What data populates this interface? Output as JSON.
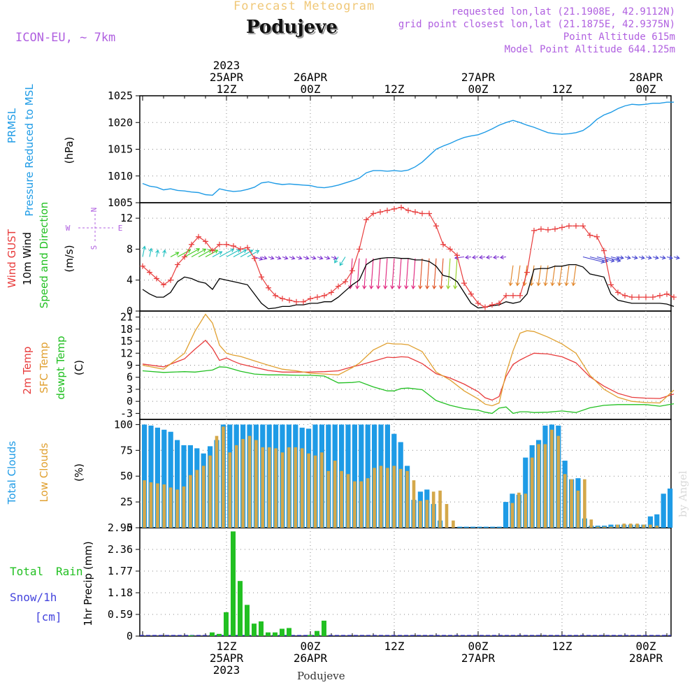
{
  "header": {
    "product": "Forecast Meteogram",
    "location": "Podujeve",
    "model": "ICON-EU, ~ 7km",
    "requested": "requested lon,lat (21.1908E, 42.9112N)",
    "gridpoint": "grid point closest lon,lat (21.1875E, 42.9375N)",
    "point_alt": "Point Altitude 615m",
    "model_alt": "Model Point Altitude 644.125m",
    "footer": "Podujeve",
    "watermark": "by Angel"
  },
  "time_axis": {
    "top_labels": [
      {
        "h": 12,
        "lines": [
          "2023",
          "25APR",
          "12Z"
        ]
      },
      {
        "h": 24,
        "lines": [
          "26APR",
          "00Z"
        ]
      },
      {
        "h": 36,
        "lines": [
          "12Z"
        ]
      },
      {
        "h": 48,
        "lines": [
          "27APR",
          "00Z"
        ]
      },
      {
        "h": 60,
        "lines": [
          "12Z"
        ]
      },
      {
        "h": 72,
        "lines": [
          "28APR",
          "00Z"
        ]
      }
    ],
    "bottom_labels": [
      {
        "h": 12,
        "lines": [
          "12Z",
          "25APR",
          "2023"
        ]
      },
      {
        "h": 24,
        "lines": [
          "00Z",
          "26APR"
        ]
      },
      {
        "h": 36,
        "lines": [
          "12Z"
        ]
      },
      {
        "h": 48,
        "lines": [
          "00Z",
          "27APR"
        ]
      },
      {
        "h": 60,
        "lines": [
          "12Z"
        ]
      },
      {
        "h": 72,
        "lines": [
          "00Z",
          "28APR"
        ]
      }
    ]
  },
  "panel_labels": {
    "pressure": {
      "l1": "PRMSL",
      "l2": "Pressure Reduced to MSL",
      "unit": "(hPa)"
    },
    "wind": {
      "l1": "Wind GUST",
      "l2": "10m Wind",
      "l3": "Speed and Direction",
      "unit": "(m/s)",
      "compass": [
        "N",
        "W",
        "E",
        "S"
      ]
    },
    "temp": {
      "l1": "2m Temp",
      "l2": "SFC Temp",
      "l3": "dewpt Temp",
      "unit": "(C)"
    },
    "clouds": {
      "l1": "Total Clouds",
      "l2": "Low Clouds",
      "unit": "(%)"
    },
    "precip": {
      "l1": "Total",
      "l1b": "Rain",
      "l2": "Snow/1h",
      "l3": "[cm]",
      "unit": "1hr Precip (mm)"
    }
  },
  "colors": {
    "pressure": "#1e9be6",
    "gust": "#e83c3c",
    "wind": "#000000",
    "t2m": "#e83c3c",
    "sfc": "#e0a030",
    "dewpt": "#22c022",
    "total_cloud": "#1e9be6",
    "low_cloud": "#d4a84a",
    "rain": "#22c022",
    "snow": "#4444dd",
    "label_purple": "#b060e0",
    "label_cyan": "#1e9be6"
  },
  "chart_data": [
    {
      "type": "line",
      "name": "pressure",
      "ylim": [
        1005,
        1025
      ],
      "yticks": [
        1005,
        1010,
        1015,
        1020,
        1025
      ],
      "x_hours": [
        0,
        1,
        2,
        3,
        4,
        5,
        6,
        7,
        8,
        9,
        10,
        11,
        12,
        13,
        14,
        15,
        16,
        17,
        18,
        19,
        20,
        21,
        22,
        23,
        24,
        25,
        26,
        27,
        28,
        29,
        30,
        31,
        32,
        33,
        34,
        35,
        36,
        37,
        38,
        39,
        40,
        41,
        42,
        43,
        44,
        45,
        46,
        47,
        48,
        49,
        50,
        51,
        52,
        53,
        54,
        55,
        56,
        57,
        58,
        59,
        60,
        61,
        62,
        63,
        64,
        65,
        66,
        67,
        68,
        69,
        70,
        71,
        72,
        73,
        74,
        75,
        76
      ],
      "series": [
        {
          "values": [
            1008.6,
            1008.1,
            1007.9,
            1007.4,
            1007.6,
            1007.3,
            1007.2,
            1007.0,
            1006.9,
            1006.5,
            1006.4,
            1007.6,
            1007.3,
            1007.1,
            1007.2,
            1007.5,
            1007.9,
            1008.7,
            1008.9,
            1008.6,
            1008.4,
            1008.5,
            1008.4,
            1008.3,
            1008.2,
            1007.9,
            1007.8,
            1008.0,
            1008.3,
            1008.7,
            1009.1,
            1009.6,
            1010.6,
            1011.0,
            1011.0,
            1010.9,
            1011.0,
            1010.9,
            1011.1,
            1011.7,
            1012.6,
            1013.8,
            1015.0,
            1015.6,
            1016.1,
            1016.7,
            1017.2,
            1017.5,
            1017.7,
            1018.2,
            1018.8,
            1019.5,
            1020.0,
            1020.4,
            1020.0,
            1019.5,
            1019.1,
            1018.6,
            1018.1,
            1017.9,
            1017.8,
            1017.9,
            1018.1,
            1018.5,
            1019.4,
            1020.6,
            1021.4,
            1021.9,
            1022.6,
            1023.1,
            1023.4,
            1023.3,
            1023.4,
            1023.6,
            1023.6,
            1023.8,
            1023.8
          ]
        }
      ]
    },
    {
      "type": "line",
      "name": "wind",
      "ylim": [
        0,
        14
      ],
      "yticks": [
        0,
        4,
        8,
        12
      ],
      "x_hours": [
        0,
        1,
        2,
        3,
        4,
        5,
        6,
        7,
        8,
        9,
        10,
        11,
        12,
        13,
        14,
        15,
        16,
        17,
        18,
        19,
        20,
        21,
        22,
        23,
        24,
        25,
        26,
        27,
        28,
        29,
        30,
        31,
        32,
        33,
        34,
        35,
        36,
        37,
        38,
        39,
        40,
        41,
        42,
        43,
        44,
        45,
        46,
        47,
        48,
        49,
        50,
        51,
        52,
        53,
        54,
        55,
        56,
        57,
        58,
        59,
        60,
        61,
        62,
        63,
        64,
        65,
        66,
        67,
        68,
        69,
        70,
        71,
        72,
        73,
        74,
        75,
        76
      ],
      "series": [
        {
          "name": "Wind GUST",
          "values": [
            5.8,
            5.0,
            4.2,
            3.4,
            4.0,
            6.0,
            7.0,
            8.6,
            9.6,
            9.0,
            7.8,
            8.6,
            8.6,
            8.4,
            8.0,
            8.2,
            6.8,
            4.4,
            3.0,
            2.0,
            1.6,
            1.4,
            1.2,
            1.2,
            1.6,
            1.8,
            2.0,
            2.4,
            3.2,
            3.8,
            5.2,
            8.0,
            11.8,
            12.6,
            12.8,
            13.0,
            13.2,
            13.4,
            13.0,
            12.8,
            12.6,
            12.6,
            11.0,
            8.6,
            8.0,
            7.2,
            3.6,
            2.2,
            1.0,
            0.5,
            0.8,
            1.0,
            2.0,
            2.0,
            2.0,
            5.0,
            10.4,
            10.6,
            10.5,
            10.6,
            10.8,
            11.0,
            11.0,
            11.0,
            9.8,
            9.6,
            7.8,
            3.4,
            2.4,
            2.0,
            1.8,
            1.8,
            1.8,
            1.8,
            2.0,
            2.2,
            1.8
          ]
        },
        {
          "name": "10m Wind",
          "values": [
            2.8,
            2.2,
            1.8,
            1.8,
            2.4,
            3.8,
            4.4,
            4.2,
            3.8,
            3.6,
            2.8,
            4.2,
            4.0,
            3.8,
            3.6,
            3.4,
            2.2,
            1.0,
            0.3,
            0.4,
            0.6,
            0.6,
            0.8,
            0.8,
            1.0,
            1.0,
            1.2,
            1.2,
            1.8,
            2.6,
            3.4,
            4.0,
            6.0,
            6.6,
            6.8,
            6.9,
            6.9,
            6.8,
            6.8,
            6.6,
            6.6,
            6.4,
            5.8,
            4.6,
            4.4,
            3.8,
            2.4,
            1.0,
            0.4,
            0.5,
            0.7,
            0.8,
            1.2,
            1.0,
            1.2,
            2.2,
            5.4,
            5.5,
            5.5,
            5.8,
            5.8,
            6.0,
            6.0,
            5.7,
            4.8,
            4.6,
            4.4,
            2.2,
            1.4,
            1.2,
            1.0,
            1.0,
            1.0,
            1.0,
            1.0,
            0.9,
            0.6
          ]
        }
      ]
    },
    {
      "type": "line",
      "name": "temperature",
      "ylim": [
        -4.5,
        22.5
      ],
      "yticks": [
        -3,
        0,
        3,
        6,
        9,
        12,
        15,
        18,
        21
      ],
      "x_hours": [
        0,
        3,
        6,
        7.5,
        9,
        10,
        11,
        12,
        13,
        14,
        16,
        18,
        20,
        22,
        24,
        26,
        28,
        30,
        31,
        33,
        35,
        36,
        37,
        38,
        40,
        42,
        44,
        46,
        48,
        49,
        50,
        51,
        52,
        53,
        54,
        55,
        56,
        58,
        60,
        62,
        64,
        66,
        68,
        70,
        72,
        74,
        76
      ],
      "series": [
        {
          "name": "2m Temp",
          "values": [
            9.3,
            8.6,
            10.6,
            13.0,
            15.2,
            13.2,
            10.2,
            10.8,
            10.0,
            9.3,
            8.5,
            7.7,
            7.3,
            7.3,
            7.3,
            7.4,
            7.6,
            8.6,
            9.0,
            10.0,
            11.0,
            10.9,
            11.1,
            11.0,
            9.4,
            6.9,
            5.8,
            4.3,
            2.4,
            0.9,
            0.3,
            1.2,
            6.2,
            9.2,
            10.3,
            11.2,
            12.0,
            11.8,
            11.1,
            9.6,
            6.1,
            3.8,
            2.0,
            1.0,
            0.8,
            0.7,
            1.8
          ]
        },
        {
          "name": "SFC Temp",
          "values": [
            9.0,
            8.0,
            12.0,
            17.5,
            21.7,
            19.5,
            14.0,
            12.0,
            11.5,
            11.2,
            10.1,
            9.0,
            8.0,
            7.6,
            7.0,
            6.8,
            6.6,
            8.4,
            9.5,
            12.8,
            14.5,
            14.3,
            14.3,
            14.1,
            12.4,
            7.3,
            5.3,
            2.6,
            0.6,
            -0.7,
            -1.1,
            -0.4,
            7.0,
            12.6,
            17.0,
            17.6,
            17.4,
            16.0,
            14.3,
            12.0,
            6.5,
            3.0,
            1.0,
            0.0,
            -0.3,
            -0.4,
            2.8
          ]
        },
        {
          "name": "dewpt Temp",
          "values": [
            7.6,
            7.2,
            7.4,
            7.3,
            7.6,
            7.8,
            8.6,
            8.5,
            8.0,
            7.5,
            6.8,
            6.6,
            6.6,
            6.5,
            6.5,
            6.3,
            4.6,
            4.7,
            4.9,
            3.6,
            2.6,
            2.6,
            3.2,
            3.3,
            2.9,
            0.2,
            -1.0,
            -1.8,
            -2.2,
            -2.7,
            -3.0,
            -1.7,
            -1.4,
            -3.0,
            -2.6,
            -2.6,
            -2.8,
            -2.7,
            -2.4,
            -2.8,
            -1.6,
            -1.0,
            -0.8,
            -0.8,
            -0.8,
            -1.2,
            -0.6
          ]
        }
      ]
    },
    {
      "type": "bar",
      "name": "clouds",
      "ylim": [
        0,
        105
      ],
      "yticks": [
        0,
        25,
        50,
        75,
        100
      ],
      "series": [
        {
          "name": "Total Clouds",
          "values": [
            100,
            99,
            97,
            95,
            93,
            85,
            80,
            80,
            77,
            72,
            79,
            85,
            100,
            100,
            100,
            100,
            100,
            100,
            100,
            100,
            100,
            100,
            100,
            100,
            97,
            96,
            100,
            100,
            100,
            100,
            100,
            100,
            100,
            100,
            100,
            100,
            100,
            100,
            91,
            83,
            60,
            27,
            35,
            37,
            23,
            7,
            0,
            0,
            1,
            1,
            1,
            1,
            1,
            1,
            1,
            25,
            33,
            32,
            68,
            80,
            85,
            99,
            100,
            99,
            65,
            47,
            48,
            9,
            2,
            2,
            2,
            3,
            3,
            3,
            3,
            3,
            3,
            11,
            13,
            33,
            38
          ]
        },
        {
          "name": "Low Clouds",
          "values": [
            46,
            44,
            43,
            42,
            39,
            37,
            40,
            51,
            56,
            60,
            70,
            89,
            98,
            73,
            80,
            86,
            89,
            85,
            78,
            78,
            77,
            73,
            78,
            78,
            77,
            72,
            70,
            73,
            55,
            65,
            55,
            52,
            45,
            45,
            48,
            58,
            60,
            58,
            60,
            57,
            55,
            46,
            26,
            27,
            35,
            36,
            23,
            7,
            0,
            0,
            0,
            0,
            0,
            0,
            0,
            0,
            24,
            34,
            33,
            68,
            81,
            81,
            95,
            89,
            52,
            47,
            36,
            47,
            8,
            1,
            1,
            1,
            3,
            4,
            4,
            4,
            3,
            3,
            2,
            0,
            0
          ]
        }
      ]
    },
    {
      "type": "bar",
      "name": "precip",
      "ylim": [
        0,
        2.95
      ],
      "yticks": [
        0,
        0.59,
        1.18,
        1.77,
        2.36,
        2.95
      ],
      "bar_hours": [
        7,
        8,
        9,
        10,
        11,
        12,
        13,
        14,
        15,
        16,
        17,
        18,
        19,
        20,
        21,
        22,
        23,
        24,
        25,
        26
      ],
      "series": [
        {
          "name": "Total Rain",
          "values": [
            0.02,
            0,
            0,
            0.1,
            0.06,
            0.65,
            2.85,
            1.5,
            0.85,
            0.34,
            0.4,
            0.1,
            0.1,
            0.2,
            0.22,
            0,
            0,
            0.03,
            0.14,
            0.42
          ]
        }
      ]
    }
  ]
}
